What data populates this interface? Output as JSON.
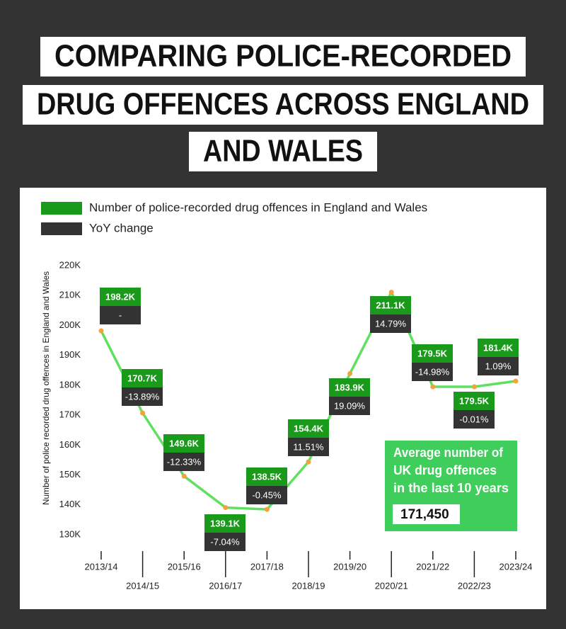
{
  "chart_data": {
    "type": "line",
    "title": [
      "COMPARING POLICE-RECORDED",
      "DRUG OFFENCES ACROSS ENGLAND",
      "AND WALES"
    ],
    "y_label": "Number of police recorded drug offences in England and Wales",
    "categories": [
      "2013/14",
      "2014/15",
      "2015/16",
      "2016/17",
      "2017/18",
      "2018/19",
      "2019/20",
      "2020/21",
      "2021/22",
      "2022/23",
      "2023/24"
    ],
    "series": [
      {
        "name": "Number of police-recorded drug offences in England and Wales",
        "color": "#1a9a1a",
        "line_color": "#5fe05f",
        "point_color": "#f5a23a",
        "values": [
          198200,
          170700,
          149600,
          139100,
          138500,
          154400,
          183900,
          211100,
          179500,
          179500,
          181400
        ],
        "value_labels": [
          "198.2K",
          "170.7K",
          "149.6K",
          "139.1K",
          "138.5K",
          "154.4K",
          "183.9K",
          "211.1K",
          "179.5K",
          "179.5K",
          "181.4K"
        ]
      },
      {
        "name": "YoY change",
        "color": "#333333",
        "values": [
          null,
          -13.89,
          -12.33,
          -7.04,
          -0.45,
          11.51,
          19.09,
          14.79,
          -14.98,
          -0.01,
          1.09
        ],
        "value_labels": [
          "-",
          "-13.89%",
          "-12.33%",
          "-7.04%",
          "-0.45%",
          "11.51%",
          "19.09%",
          "14.79%",
          "-14.98%",
          "-0.01%",
          "1.09%"
        ]
      }
    ],
    "ylim": [
      130000,
      220000
    ],
    "yticks": [
      {
        "value": 130000,
        "label": "130K"
      },
      {
        "value": 140000,
        "label": "140K"
      },
      {
        "value": 150000,
        "label": "150K"
      },
      {
        "value": 160000,
        "label": "160K"
      },
      {
        "value": 170000,
        "label": "170K"
      },
      {
        "value": 180000,
        "label": "180K"
      },
      {
        "value": 190000,
        "label": "190K"
      },
      {
        "value": 200000,
        "label": "200K"
      },
      {
        "value": 210000,
        "label": "210K"
      },
      {
        "value": 220000,
        "label": "220K"
      }
    ],
    "annotation": {
      "lines": [
        "Average number of",
        "UK drug offences",
        "in the last 10 years"
      ],
      "value": 171450,
      "value_label": "171,450",
      "color": "#3fce5c"
    }
  }
}
